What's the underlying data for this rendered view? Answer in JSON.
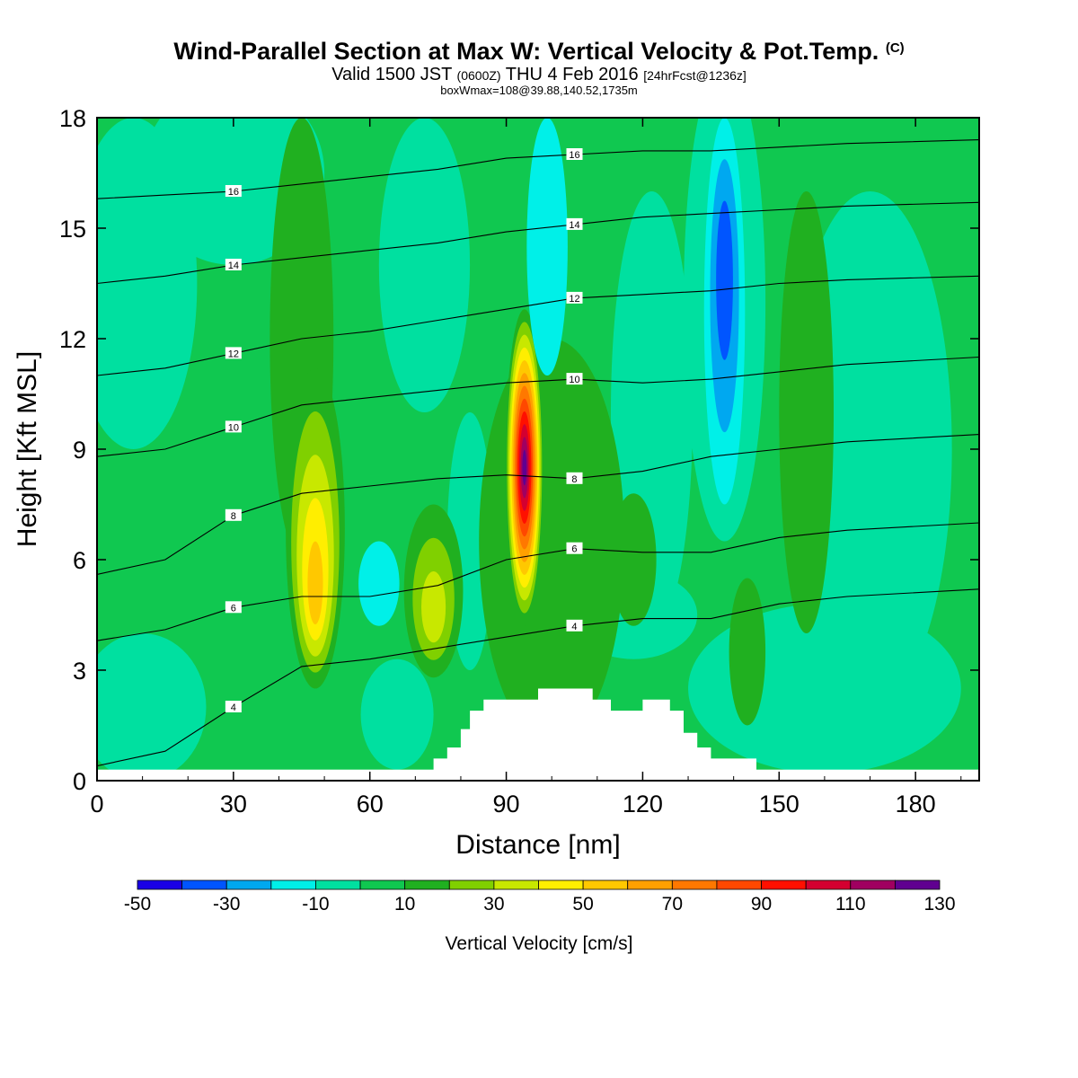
{
  "title": "Wind-Parallel Section at Max W: Vertical Velocity & Pot.Temp.",
  "title_mark": "(C)",
  "subtitle_main": "Valid 1500 JST",
  "subtitle_z": "(0600Z)",
  "subtitle_date": "THU 4 Feb 2016",
  "subtitle_fcst": "[24hrFcst@1236z]",
  "subtitle2": "boxWmax=108@39.88,140.52,1735m",
  "chart_data": {
    "type": "heatmap",
    "xlabel": "Distance [nm]",
    "ylabel": "Height [Kft MSL]",
    "xlim": [
      0,
      194
    ],
    "ylim": [
      0,
      18
    ],
    "xticks": [
      "0",
      "30",
      "60",
      "90",
      "120",
      "150",
      "180"
    ],
    "yticks": [
      "0",
      "3",
      "6",
      "9",
      "12",
      "15",
      "18"
    ],
    "colorbar": {
      "title": "Vertical Velocity [cm/s]",
      "levels": [
        -50,
        -40,
        -30,
        -20,
        -10,
        0,
        10,
        20,
        30,
        40,
        50,
        60,
        70,
        80,
        90,
        100,
        110,
        120,
        130
      ],
      "colors": [
        "#1a00e6",
        "#0055ff",
        "#00a8f0",
        "#00f0e8",
        "#00e0a0",
        "#10c850",
        "#20b020",
        "#80d000",
        "#c8e800",
        "#ffee00",
        "#ffc800",
        "#ffa000",
        "#ff7800",
        "#ff4800",
        "#ff1000",
        "#d40030",
        "#a00060",
        "#600090"
      ],
      "labels": [
        "-50",
        "-30",
        "-10",
        "10",
        "30",
        "50",
        "70",
        "90",
        "110",
        "130"
      ]
    },
    "field_features": [
      {
        "kind": "updraft",
        "x": 94,
        "y_bottom": 4.2,
        "y_top": 12.8,
        "peak_cm_s": 125,
        "peak_height": 8.5
      },
      {
        "kind": "updraft",
        "x": 48,
        "y_bottom": 2.5,
        "y_top": 11.2,
        "peak_cm_s": 50,
        "peak_height": 5.0
      },
      {
        "kind": "updraft",
        "x": 74,
        "y_bottom": 2.8,
        "y_top": 7.5,
        "peak_cm_s": 35,
        "peak_height": 4.5
      },
      {
        "kind": "downdraft",
        "x": 138,
        "y_bottom": 7.5,
        "y_top": 18,
        "peak_cm_s": -35,
        "peak_height": 14
      },
      {
        "kind": "downdraft",
        "x": 99,
        "y_bottom": 11,
        "y_top": 18,
        "peak_cm_s": -15,
        "peak_height": 16
      },
      {
        "kind": "downdraft",
        "x": 62,
        "y_bottom": 4.2,
        "y_top": 6.5,
        "peak_cm_s": -15,
        "peak_height": 5.3
      }
    ],
    "terrain_kft": [
      [
        74,
        0
      ],
      [
        74,
        0.6
      ],
      [
        77,
        0.6
      ],
      [
        77,
        0.9
      ],
      [
        80,
        0.9
      ],
      [
        80,
        1.4
      ],
      [
        82,
        1.4
      ],
      [
        82,
        1.9
      ],
      [
        85,
        1.9
      ],
      [
        85,
        2.2
      ],
      [
        89,
        2.2
      ],
      [
        89,
        2.2
      ],
      [
        97,
        2.2
      ],
      [
        97,
        2.5
      ],
      [
        109,
        2.5
      ],
      [
        109,
        2.2
      ],
      [
        113,
        2.2
      ],
      [
        113,
        1.9
      ],
      [
        120,
        1.9
      ],
      [
        120,
        2.2
      ],
      [
        126,
        2.2
      ],
      [
        126,
        1.9
      ],
      [
        129,
        1.9
      ],
      [
        129,
        1.3
      ],
      [
        132,
        1.3
      ],
      [
        132,
        0.9
      ],
      [
        135,
        0.9
      ],
      [
        135,
        0.6
      ],
      [
        145,
        0.6
      ],
      [
        145,
        0
      ]
    ],
    "theta_contours": [
      {
        "label": "4",
        "y": [
          0.4,
          0.8,
          2.0,
          3.1,
          3.3,
          3.6,
          3.9,
          4.2,
          4.4,
          4.4,
          4.8,
          5.0,
          5.2
        ]
      },
      {
        "label": "6",
        "y": [
          3.8,
          4.1,
          4.7,
          5.0,
          5.0,
          5.3,
          6.0,
          6.3,
          6.2,
          6.2,
          6.6,
          6.8,
          7.0
        ]
      },
      {
        "label": "8",
        "y": [
          5.6,
          6.0,
          7.2,
          7.8,
          8.0,
          8.2,
          8.3,
          8.2,
          8.4,
          8.8,
          9.0,
          9.2,
          9.4
        ]
      },
      {
        "label": "10",
        "y": [
          8.8,
          9.0,
          9.6,
          10.2,
          10.4,
          10.6,
          10.8,
          10.9,
          10.8,
          10.9,
          11.1,
          11.3,
          11.5
        ]
      },
      {
        "label": "12",
        "y": [
          11.0,
          11.2,
          11.6,
          12.0,
          12.2,
          12.5,
          12.8,
          13.1,
          13.2,
          13.3,
          13.5,
          13.6,
          13.7
        ]
      },
      {
        "label": "14",
        "y": [
          13.5,
          13.7,
          14.0,
          14.2,
          14.4,
          14.6,
          14.9,
          15.1,
          15.3,
          15.4,
          15.5,
          15.6,
          15.7
        ]
      },
      {
        "label": "16",
        "y": [
          15.8,
          15.9,
          16.0,
          16.2,
          16.4,
          16.6,
          16.9,
          17.0,
          17.1,
          17.1,
          17.2,
          17.3,
          17.4
        ]
      }
    ],
    "theta_x": [
      0,
      15,
      30,
      45,
      60,
      75,
      90,
      105,
      120,
      135,
      150,
      165,
      194
    ]
  }
}
